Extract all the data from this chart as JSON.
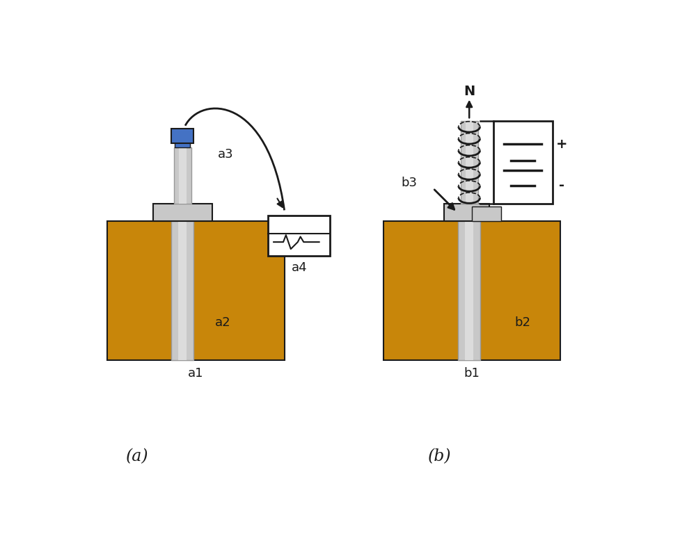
{
  "bg_color": "#ffffff",
  "gold_color": "#c8860a",
  "gray_color": "#c8c8c8",
  "gray_dark": "#999999",
  "gray_light": "#dcdcdc",
  "blue_color": "#4472c4",
  "black": "#1a1a1a",
  "label_a1": "a1",
  "label_a2": "a2",
  "label_a3": "a3",
  "label_a4": "a4",
  "label_b1": "b1",
  "label_b2": "b2",
  "label_b3": "b3",
  "label_a": "(a)",
  "label_b": "(b)",
  "label_N": "N",
  "label_plus": "+",
  "label_minus": "-",
  "figsize": [
    10.0,
    7.81
  ],
  "dpi": 100
}
